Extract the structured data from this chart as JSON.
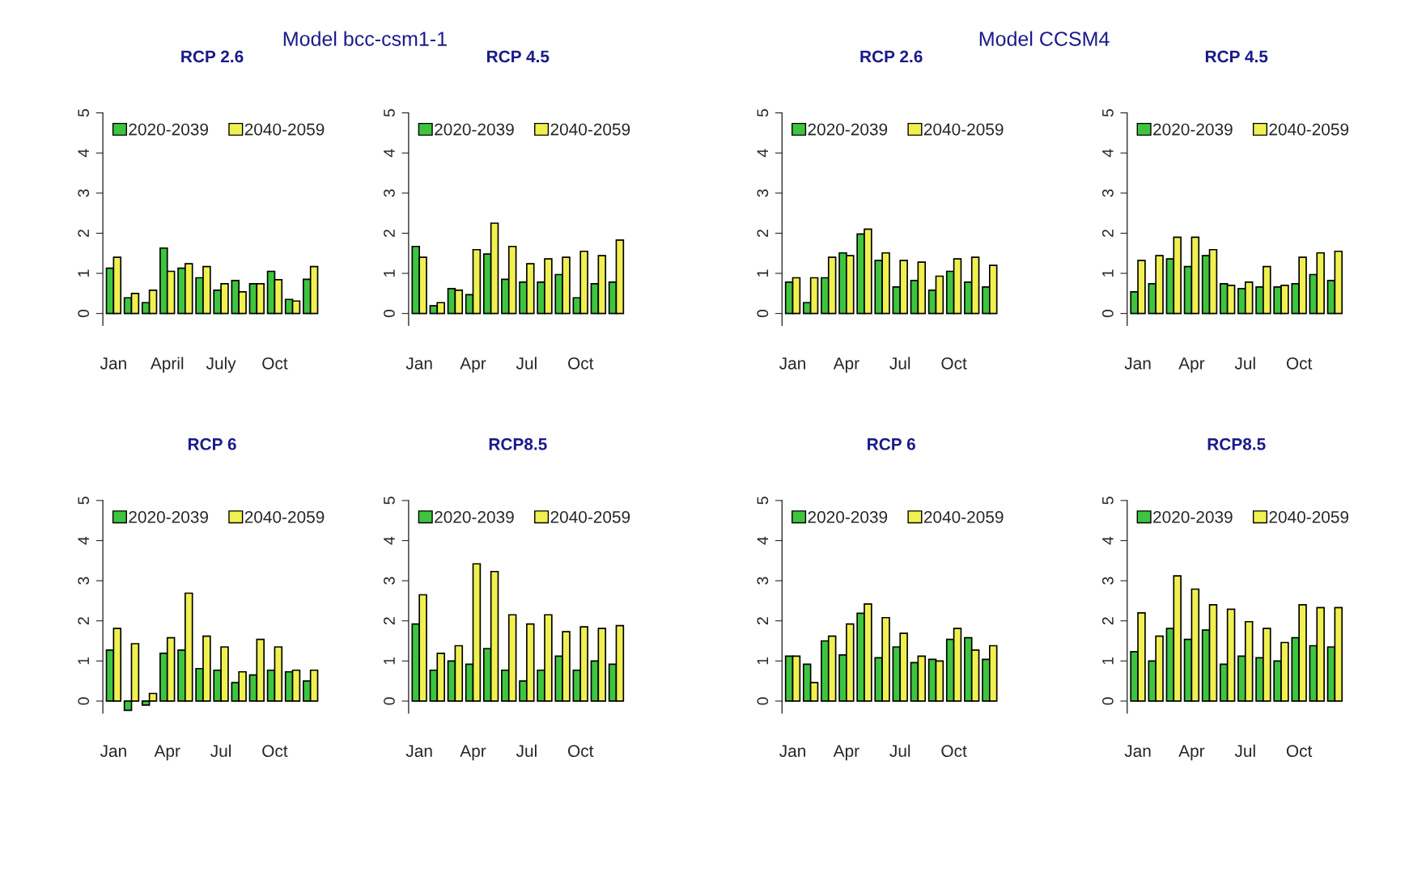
{
  "chart_data": [
    {
      "type": "bar",
      "title": "RCP 2.6",
      "annotations": [
        "Model bcc-csm1-1"
      ],
      "categories": [
        "Jan",
        null,
        null,
        "April",
        null,
        null,
        "July",
        null,
        null,
        "Oct",
        null,
        null
      ],
      "ylim": [
        -0.3,
        5
      ],
      "yticks": [
        0,
        1,
        2,
        3,
        4,
        5
      ],
      "legend": "top left",
      "series": [
        {
          "name": "2020-2039",
          "color": "#3ec43e",
          "values": [
            1.13,
            0.39,
            0.27,
            1.63,
            1.13,
            0.89,
            0.58,
            0.82,
            0.74,
            1.05,
            0.35,
            0.85
          ]
        },
        {
          "name": "2040-2059",
          "color": "#f0f050",
          "values": [
            1.4,
            0.5,
            0.58,
            1.05,
            1.24,
            1.17,
            0.74,
            0.54,
            0.74,
            0.84,
            0.31,
            1.17
          ]
        }
      ]
    },
    {
      "type": "bar",
      "title": "RCP 4.5",
      "categories": [
        "Jan",
        null,
        null,
        "Apr",
        null,
        null,
        "Jul",
        null,
        null,
        "Oct",
        null,
        null
      ],
      "ylim": [
        -0.3,
        5
      ],
      "yticks": [
        0,
        1,
        2,
        3,
        4,
        5
      ],
      "legend": "top left",
      "series": [
        {
          "name": "2020-2039",
          "color": "#3ec43e",
          "values": [
            1.67,
            0.19,
            0.62,
            0.47,
            1.48,
            0.85,
            0.78,
            0.78,
            0.97,
            0.39,
            0.74,
            0.78
          ]
        },
        {
          "name": "2040-2059",
          "color": "#f0f050",
          "values": [
            1.4,
            0.27,
            0.58,
            1.59,
            2.25,
            1.67,
            1.24,
            1.36,
            1.4,
            1.55,
            1.44,
            1.83
          ]
        }
      ]
    },
    {
      "type": "bar",
      "title": "RCP 2.6",
      "annotations": [
        "Model CCSM4"
      ],
      "categories": [
        "Jan",
        null,
        null,
        "Apr",
        null,
        null,
        "Jul",
        null,
        null,
        "Oct",
        null,
        null
      ],
      "ylim": [
        -0.3,
        5
      ],
      "yticks": [
        0,
        1,
        2,
        3,
        4,
        5
      ],
      "legend": "top left",
      "series": [
        {
          "name": "2020-2039",
          "color": "#3ec43e",
          "values": [
            0.78,
            0.27,
            0.89,
            1.51,
            1.98,
            1.32,
            0.66,
            0.82,
            0.58,
            1.05,
            0.78,
            0.66
          ]
        },
        {
          "name": "2040-2059",
          "color": "#f0f050",
          "values": [
            0.89,
            0.89,
            1.4,
            1.44,
            2.1,
            1.51,
            1.32,
            1.28,
            0.93,
            1.36,
            1.4,
            1.2
          ]
        }
      ]
    },
    {
      "type": "bar",
      "title": "RCP 4.5",
      "categories": [
        "Jan",
        null,
        null,
        "Apr",
        null,
        null,
        "Jul",
        null,
        null,
        "Oct",
        null,
        null
      ],
      "ylim": [
        -0.3,
        5
      ],
      "yticks": [
        0,
        1,
        2,
        3,
        4,
        5
      ],
      "legend": "top left",
      "series": [
        {
          "name": "2020-2039",
          "color": "#3ec43e",
          "values": [
            0.54,
            0.74,
            1.36,
            1.17,
            1.44,
            0.74,
            0.62,
            0.66,
            0.66,
            0.74,
            0.97,
            0.82
          ]
        },
        {
          "name": "2040-2059",
          "color": "#f0f050",
          "values": [
            1.32,
            1.44,
            1.9,
            1.9,
            1.59,
            0.7,
            0.78,
            1.17,
            0.7,
            1.4,
            1.51,
            1.55
          ]
        }
      ]
    },
    {
      "type": "bar",
      "title": "RCP 6",
      "categories": [
        "Jan",
        null,
        null,
        "Apr",
        null,
        null,
        "Jul",
        null,
        null,
        "Oct",
        null,
        null
      ],
      "ylim": [
        -0.3,
        5
      ],
      "yticks": [
        0,
        1,
        2,
        3,
        4,
        5
      ],
      "legend": "top left",
      "series": [
        {
          "name": "2020-2039",
          "color": "#3ec43e",
          "values": [
            1.27,
            -0.23,
            -0.1,
            1.19,
            1.27,
            0.81,
            0.77,
            0.46,
            0.65,
            0.77,
            0.73,
            0.5
          ]
        },
        {
          "name": "2040-2059",
          "color": "#f0f050",
          "values": [
            1.81,
            1.43,
            0.19,
            1.58,
            2.69,
            1.62,
            1.35,
            0.73,
            1.54,
            1.35,
            0.77,
            0.77
          ]
        }
      ]
    },
    {
      "type": "bar",
      "title": "RCP8.5",
      "categories": [
        "Jan",
        null,
        null,
        "Apr",
        null,
        null,
        "Jul",
        null,
        null,
        "Oct",
        null,
        null
      ],
      "ylim": [
        -0.3,
        5
      ],
      "yticks": [
        0,
        1,
        2,
        3,
        4,
        5
      ],
      "legend": "top left",
      "series": [
        {
          "name": "2020-2039",
          "color": "#3ec43e",
          "values": [
            1.92,
            0.77,
            1.0,
            0.92,
            1.31,
            0.77,
            0.5,
            0.77,
            1.12,
            0.77,
            1.0,
            0.92
          ]
        },
        {
          "name": "2040-2059",
          "color": "#f0f050",
          "values": [
            2.65,
            1.19,
            1.38,
            3.42,
            3.23,
            2.15,
            1.92,
            2.15,
            1.73,
            1.85,
            1.81,
            1.88
          ]
        }
      ]
    },
    {
      "type": "bar",
      "title": "RCP 6",
      "categories": [
        "Jan",
        null,
        null,
        "Apr",
        null,
        null,
        "Jul",
        null,
        null,
        "Oct",
        null,
        null
      ],
      "ylim": [
        -0.3,
        5
      ],
      "yticks": [
        0,
        1,
        2,
        3,
        4,
        5
      ],
      "legend": "top left",
      "series": [
        {
          "name": "2020-2039",
          "color": "#3ec43e",
          "values": [
            1.12,
            0.92,
            1.5,
            1.15,
            2.19,
            1.08,
            1.35,
            0.96,
            1.04,
            1.54,
            1.58,
            1.04
          ]
        },
        {
          "name": "2040-2059",
          "color": "#f0f050",
          "values": [
            1.12,
            0.46,
            1.62,
            1.92,
            2.42,
            2.08,
            1.69,
            1.12,
            1.0,
            1.81,
            1.27,
            1.38
          ]
        }
      ]
    },
    {
      "type": "bar",
      "title": "RCP8.5",
      "categories": [
        "Jan",
        null,
        null,
        "Apr",
        null,
        null,
        "Jul",
        null,
        null,
        "Oct",
        null,
        null
      ],
      "ylim": [
        -0.3,
        5
      ],
      "yticks": [
        0,
        1,
        2,
        3,
        4,
        5
      ],
      "legend": "top left",
      "series": [
        {
          "name": "2020-2039",
          "color": "#3ec43e",
          "values": [
            1.23,
            1.0,
            1.81,
            1.54,
            1.77,
            0.92,
            1.12,
            1.08,
            1.0,
            1.58,
            1.38,
            1.35
          ]
        },
        {
          "name": "2040-2059",
          "color": "#f0f050",
          "values": [
            2.2,
            1.62,
            3.12,
            2.79,
            2.4,
            2.29,
            1.98,
            1.81,
            1.46,
            2.4,
            2.33,
            2.33
          ]
        }
      ]
    }
  ]
}
